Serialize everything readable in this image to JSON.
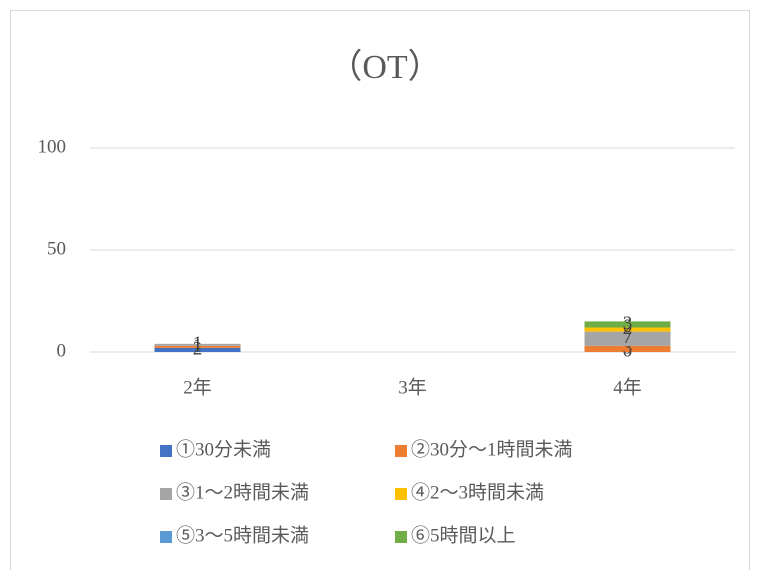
{
  "chart_data": {
    "type": "stacked-bar",
    "title": "（OT）",
    "categories": [
      "2年",
      "3年",
      "4年"
    ],
    "series": [
      {
        "name": "①30分未満",
        "color": "#4472c4",
        "values": [
          2,
          null,
          0
        ]
      },
      {
        "name": "②30分～1時間未満",
        "color": "#ed7d31",
        "values": [
          1,
          null,
          3
        ]
      },
      {
        "name": "③1～2時間未満",
        "color": "#a5a5a5",
        "values": [
          1,
          null,
          7
        ]
      },
      {
        "name": "④2～3時間未満",
        "color": "#ffc000",
        "values": [
          null,
          null,
          2
        ]
      },
      {
        "name": "⑤3～5時間未満",
        "color": "#5b9bd5",
        "values": [
          null,
          null,
          0
        ]
      },
      {
        "name": "⑥5時間以上",
        "color": "#70ad47",
        "values": [
          null,
          null,
          3
        ]
      }
    ],
    "ylim": [
      0,
      100
    ],
    "yticks": [
      0,
      50,
      100
    ],
    "grid": true,
    "legend": "bottom"
  }
}
